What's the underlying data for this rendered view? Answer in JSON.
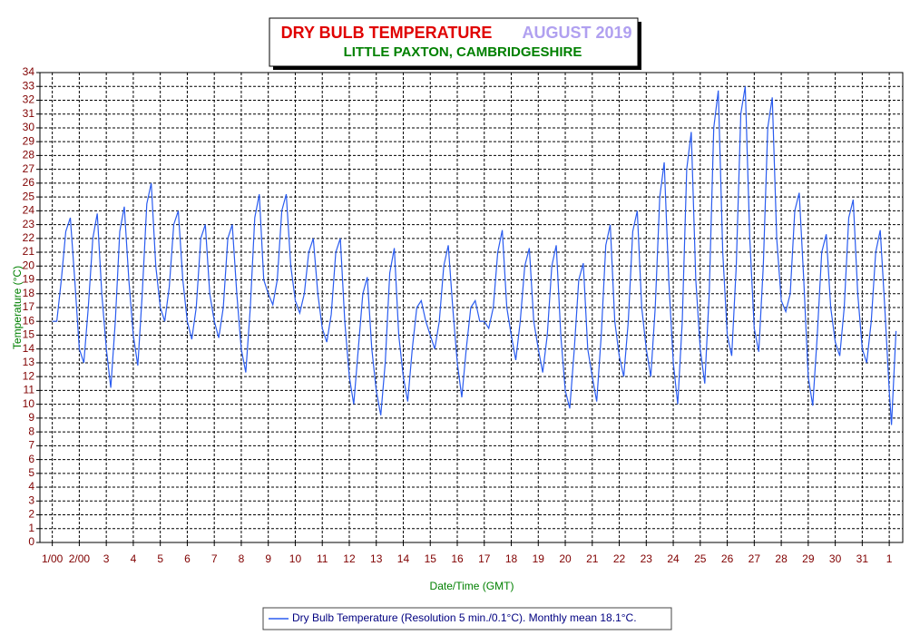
{
  "chart_data": {
    "type": "line",
    "title": "DRY BULB TEMPERATURE",
    "title_date": "AUGUST 2019",
    "subtitle": "LITTLE PAXTON, CAMBRIDGESHIRE",
    "ylabel": "Temperature (°C)",
    "xlabel": "Date/Time (GMT)",
    "grid": true,
    "xlim": [
      -11,
      756
    ],
    "ylim": [
      0,
      34
    ],
    "yticks": [
      0,
      1,
      2,
      3,
      4,
      5,
      6,
      7,
      8,
      9,
      10,
      11,
      12,
      13,
      14,
      15,
      16,
      17,
      18,
      19,
      20,
      21,
      22,
      23,
      24,
      25,
      26,
      27,
      28,
      29,
      30,
      31,
      32,
      33,
      34
    ],
    "xticks": [
      {
        "value": 0,
        "label": "1/00"
      },
      {
        "value": 24,
        "label": "2/00"
      },
      {
        "value": 48,
        "label": "3"
      },
      {
        "value": 72,
        "label": "4"
      },
      {
        "value": 96,
        "label": "5"
      },
      {
        "value": 120,
        "label": "6"
      },
      {
        "value": 144,
        "label": "7"
      },
      {
        "value": 168,
        "label": "8"
      },
      {
        "value": 192,
        "label": "9"
      },
      {
        "value": 216,
        "label": "10"
      },
      {
        "value": 240,
        "label": "11"
      },
      {
        "value": 264,
        "label": "12"
      },
      {
        "value": 288,
        "label": "13"
      },
      {
        "value": 312,
        "label": "14"
      },
      {
        "value": 336,
        "label": "15"
      },
      {
        "value": 360,
        "label": "16"
      },
      {
        "value": 384,
        "label": "17"
      },
      {
        "value": 408,
        "label": "18"
      },
      {
        "value": 432,
        "label": "19"
      },
      {
        "value": 456,
        "label": "20"
      },
      {
        "value": 480,
        "label": "21"
      },
      {
        "value": 504,
        "label": "22"
      },
      {
        "value": 528,
        "label": "23"
      },
      {
        "value": 552,
        "label": "24"
      },
      {
        "value": 576,
        "label": "25"
      },
      {
        "value": 600,
        "label": "26"
      },
      {
        "value": 624,
        "label": "27"
      },
      {
        "value": 648,
        "label": "28"
      },
      {
        "value": 672,
        "label": "29"
      },
      {
        "value": 696,
        "label": "30"
      },
      {
        "value": 720,
        "label": "31"
      },
      {
        "value": 744,
        "label": "1"
      }
    ],
    "x": [
      0,
      4,
      8,
      12,
      16,
      20,
      24,
      28,
      32,
      36,
      40,
      44,
      48,
      52,
      56,
      60,
      64,
      68,
      72,
      76,
      80,
      84,
      88,
      92,
      96,
      100,
      104,
      108,
      112,
      116,
      120,
      124,
      128,
      132,
      136,
      140,
      144,
      148,
      152,
      156,
      160,
      164,
      168,
      172,
      176,
      180,
      184,
      188,
      192,
      196,
      200,
      204,
      208,
      212,
      216,
      220,
      224,
      228,
      232,
      236,
      240,
      244,
      248,
      252,
      256,
      260,
      264,
      268,
      272,
      276,
      280,
      284,
      288,
      292,
      296,
      300,
      304,
      308,
      312,
      316,
      320,
      324,
      328,
      332,
      336,
      340,
      344,
      348,
      352,
      356,
      360,
      364,
      368,
      372,
      376,
      380,
      384,
      388,
      392,
      396,
      400,
      404,
      408,
      412,
      416,
      420,
      424,
      428,
      432,
      436,
      440,
      444,
      448,
      452,
      456,
      460,
      464,
      468,
      472,
      476,
      480,
      484,
      488,
      492,
      496,
      500,
      504,
      508,
      512,
      516,
      520,
      524,
      528,
      532,
      536,
      540,
      544,
      548,
      552,
      556,
      560,
      564,
      568,
      572,
      576,
      580,
      584,
      588,
      592,
      596,
      600,
      604,
      608,
      612,
      616,
      620,
      624,
      628,
      632,
      636,
      640,
      644,
      648,
      652,
      656,
      660,
      664,
      668,
      672,
      676,
      680,
      684,
      688,
      692,
      696,
      700,
      704,
      708,
      712,
      716,
      720,
      724,
      728,
      732,
      736,
      740,
      744,
      746,
      750
    ],
    "series": [
      {
        "name": "Dry Bulb Temperature (Resolution 5 min./0.1°C). Monthly mean 18.1°C.",
        "color": "#2a5cf0",
        "values": [
          16,
          16,
          19,
          22.5,
          23.5,
          19,
          14,
          13,
          17,
          22,
          23.8,
          18,
          14,
          11.2,
          16,
          22.5,
          24.3,
          19,
          15,
          12.8,
          18,
          24.5,
          26,
          20,
          17,
          16,
          18.5,
          23,
          24,
          19,
          16,
          14.7,
          17,
          22,
          23,
          18,
          16,
          14.8,
          17,
          22,
          23,
          18,
          14,
          12.3,
          17,
          23.5,
          25.2,
          19,
          18,
          17.2,
          19,
          24,
          25.2,
          20,
          17.5,
          16.6,
          18,
          21,
          22,
          18,
          15.5,
          14.5,
          16.5,
          21,
          22,
          16,
          12,
          10,
          14,
          18,
          19.2,
          14,
          11,
          9.2,
          13,
          19.5,
          21.3,
          15,
          12,
          10.2,
          14,
          17,
          17.5,
          16,
          15,
          14,
          16,
          20,
          21.5,
          17,
          13,
          10.5,
          14,
          17,
          17.5,
          16,
          16,
          15.5,
          17,
          21,
          22.6,
          17,
          15,
          13.2,
          16,
          20,
          21.3,
          16,
          14,
          12.3,
          15,
          20,
          21.5,
          15,
          11,
          9.7,
          14,
          19,
          20.2,
          14,
          12,
          10.2,
          15,
          21.5,
          23,
          16,
          13.5,
          12,
          16,
          22.5,
          24,
          17,
          14,
          12,
          17,
          25,
          27.5,
          19,
          13,
          10,
          16,
          27,
          29.7,
          19,
          14,
          11.5,
          18,
          30,
          32.7,
          21,
          15,
          13.5,
          20,
          31,
          33,
          22,
          15.5,
          13.8,
          20,
          30,
          32.2,
          22,
          17.5,
          16.7,
          18,
          24,
          25.3,
          19,
          12,
          9.9,
          15,
          21,
          22.3,
          17,
          14.5,
          13.5,
          17,
          23.5,
          24.8,
          18,
          14,
          13,
          16,
          21,
          22.6,
          17,
          11,
          8.5,
          15.3
        ]
      }
    ]
  }
}
